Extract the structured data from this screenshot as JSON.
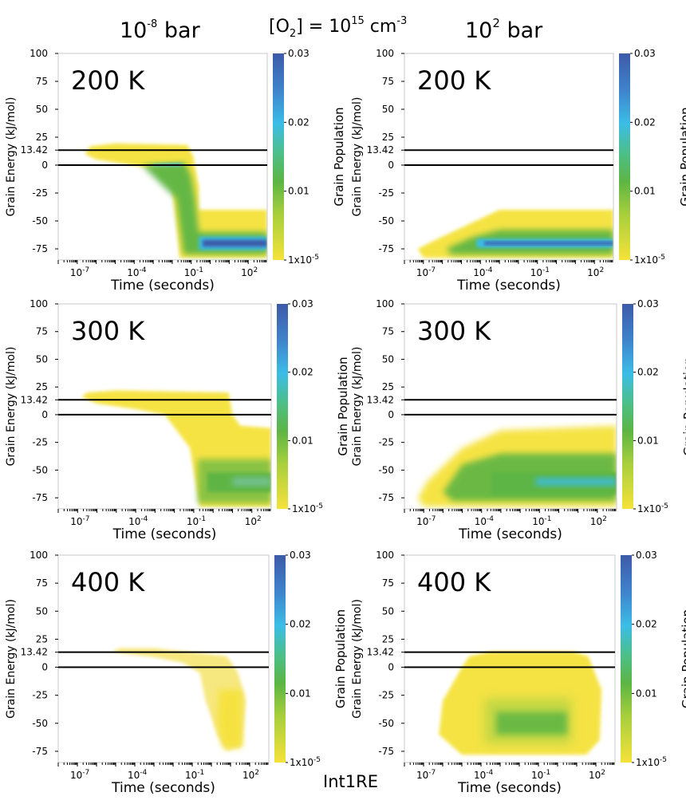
{
  "figure": {
    "header_left_base": "10",
    "header_left_exp": "-8",
    "header_left_unit": " bar",
    "header_mid_pre": "[O",
    "header_mid_sub": "2",
    "header_mid_eq": "] = 10",
    "header_mid_exp": "15",
    "header_mid_unit": " cm",
    "header_mid_unit_exp": "-3",
    "header_right_base": "10",
    "header_right_exp": "2",
    "header_right_unit": " bar",
    "footer_label": "Int1RE"
  },
  "colors": {
    "low": "#f5e23a",
    "mid": "#5db544",
    "cyan": "#3bbde6",
    "high": "#3d5aa8",
    "line": "#000000"
  },
  "chart_data": [
    {
      "type": "heatmap",
      "row": 0,
      "col": 0,
      "pressure_bar": 1e-08,
      "temperature_label": "200 K",
      "xlabel": "Time (seconds)",
      "ylabel": "Grain Energy (kJ/mol)",
      "colorbar_label": "Grain Population",
      "x_scale": "log",
      "xlim": [
        1e-08,
        1000
      ],
      "ylim": [
        -85,
        100
      ],
      "x_tick_labels": [
        "10-7",
        "10-4",
        "10-1",
        "102"
      ],
      "y_ticks": [
        100,
        75,
        50,
        25,
        13.42,
        0,
        -25,
        -50,
        -75
      ],
      "hlines": [
        13.42,
        0
      ],
      "colorbar_range": [
        1e-05,
        0.03
      ],
      "colorbar_tick_labels": [
        "0.03",
        "0.02",
        "0.01",
        "1x10-5"
      ],
      "features": [
        {
          "description": "yellow band near 13 kJ/mol descending after 0.1 s",
          "t": [
            1e-07,
            0.3
          ],
          "e": [
            -5,
            18
          ],
          "level": 0.002
        },
        {
          "description": "blue peak population",
          "t": [
            0.3,
            1000
          ],
          "e": [
            -74,
            -66
          ],
          "level": 0.03
        }
      ]
    },
    {
      "type": "heatmap",
      "row": 0,
      "col": 1,
      "pressure_bar": 100,
      "temperature_label": "200 K",
      "xlabel": "Time (seconds)",
      "ylabel": "Grain Energy (kJ/mol)",
      "colorbar_label": "Grain Population",
      "x_scale": "log",
      "xlim": [
        1e-08,
        1000
      ],
      "ylim": [
        -85,
        100
      ],
      "x_tick_labels": [
        "10-7",
        "10-4",
        "10-1",
        "102"
      ],
      "y_ticks": [
        100,
        75,
        50,
        25,
        13.42,
        0,
        -25,
        -50,
        -75
      ],
      "hlines": [
        13.42,
        0
      ],
      "colorbar_range": [
        1e-05,
        0.03
      ],
      "colorbar_tick_labels": [
        "0.03",
        "0.02",
        "0.01",
        "1x10-5"
      ],
      "features": [
        {
          "description": "population settled at ~ -70 kJ/mol from 1e-4 s",
          "t": [
            0.0001,
            1000
          ],
          "e": [
            -73,
            -67
          ],
          "level": 0.03
        }
      ]
    },
    {
      "type": "heatmap",
      "row": 1,
      "col": 0,
      "pressure_bar": 1e-08,
      "temperature_label": "300 K",
      "xlabel": "Time (seconds)",
      "ylabel": "Grain Energy (kJ/mol)",
      "colorbar_label": "Grain Population",
      "x_scale": "log",
      "xlim": [
        1e-08,
        1000
      ],
      "ylim": [
        -85,
        100
      ],
      "x_tick_labels": [
        "10-7",
        "10-4",
        "10-1",
        "102"
      ],
      "y_ticks": [
        100,
        75,
        50,
        25,
        13.42,
        0,
        -25,
        -50,
        -75
      ],
      "hlines": [
        13.42,
        0
      ],
      "colorbar_range": [
        1e-05,
        0.03
      ],
      "colorbar_tick_labels": [
        "0.03",
        "0.02",
        "0.01",
        "1x10-5"
      ],
      "features": [
        {
          "description": "green population near -60 kJ/mol after 1 s",
          "t": [
            1,
            1000
          ],
          "e": [
            -66,
            -55
          ],
          "level": 0.012
        }
      ]
    },
    {
      "type": "heatmap",
      "row": 1,
      "col": 1,
      "pressure_bar": 100,
      "temperature_label": "300 K",
      "xlabel": "Time (seconds)",
      "ylabel": "Grain Energy (kJ/mol)",
      "colorbar_label": "Grain Population",
      "x_scale": "log",
      "xlim": [
        1e-08,
        1000
      ],
      "ylim": [
        -85,
        100
      ],
      "x_tick_labels": [
        "10-7",
        "10-4",
        "10-1",
        "102"
      ],
      "y_ticks": [
        100,
        75,
        50,
        25,
        13.42,
        0,
        -25,
        -50,
        -75
      ],
      "hlines": [
        13.42,
        0
      ],
      "colorbar_range": [
        1e-05,
        0.03
      ],
      "colorbar_tick_labels": [
        "0.03",
        "0.02",
        "0.01",
        "1x10-5"
      ],
      "features": [
        {
          "description": "cyan population near -60 kJ/mol after 0.1 s",
          "t": [
            0.1,
            1000
          ],
          "e": [
            -65,
            -55
          ],
          "level": 0.02
        }
      ]
    },
    {
      "type": "heatmap",
      "row": 2,
      "col": 0,
      "pressure_bar": 1e-08,
      "temperature_label": "400 K",
      "xlabel": "Time (seconds)",
      "ylabel": "Grain Energy (kJ/mol)",
      "colorbar_label": "Grain Population",
      "x_scale": "log",
      "xlim": [
        1e-08,
        1000
      ],
      "ylim": [
        -85,
        100
      ],
      "x_tick_labels": [
        "10-7",
        "10-4",
        "10-1",
        "102"
      ],
      "y_ticks": [
        100,
        75,
        50,
        25,
        13.42,
        0,
        -25,
        -50,
        -75
      ],
      "hlines": [
        13.42,
        0
      ],
      "colorbar_range": [
        1e-05,
        0.03
      ],
      "colorbar_tick_labels": [
        "0.03",
        "0.02",
        "0.01",
        "1x10-5"
      ],
      "features": [
        {
          "description": "faint yellow population spreading to ~ -70 kJ/mol by 10 s",
          "t": [
            1e-05,
            100
          ],
          "e": [
            -70,
            15
          ],
          "level": 0.002
        }
      ]
    },
    {
      "type": "heatmap",
      "row": 2,
      "col": 1,
      "pressure_bar": 100,
      "temperature_label": "400 K",
      "xlabel": "Time (seconds)",
      "ylabel": "Grain Energy (kJ/mol)",
      "colorbar_label": "Grain Population",
      "x_scale": "log",
      "xlim": [
        1e-08,
        1000
      ],
      "ylim": [
        -85,
        100
      ],
      "x_tick_labels": [
        "10-7",
        "10-4",
        "10-1",
        "102"
      ],
      "y_ticks": [
        100,
        75,
        50,
        25,
        13.42,
        0,
        -25,
        -50,
        -75
      ],
      "hlines": [
        13.42,
        0
      ],
      "colorbar_range": [
        1e-05,
        0.03
      ],
      "colorbar_tick_labels": [
        "0.03",
        "0.02",
        "0.01",
        "1x10-5"
      ],
      "features": [
        {
          "description": "green population near -50 kJ/mol between 1e-4 and 10 s",
          "t": [
            0.0001,
            10
          ],
          "e": [
            -60,
            -40
          ],
          "level": 0.01
        }
      ]
    }
  ]
}
